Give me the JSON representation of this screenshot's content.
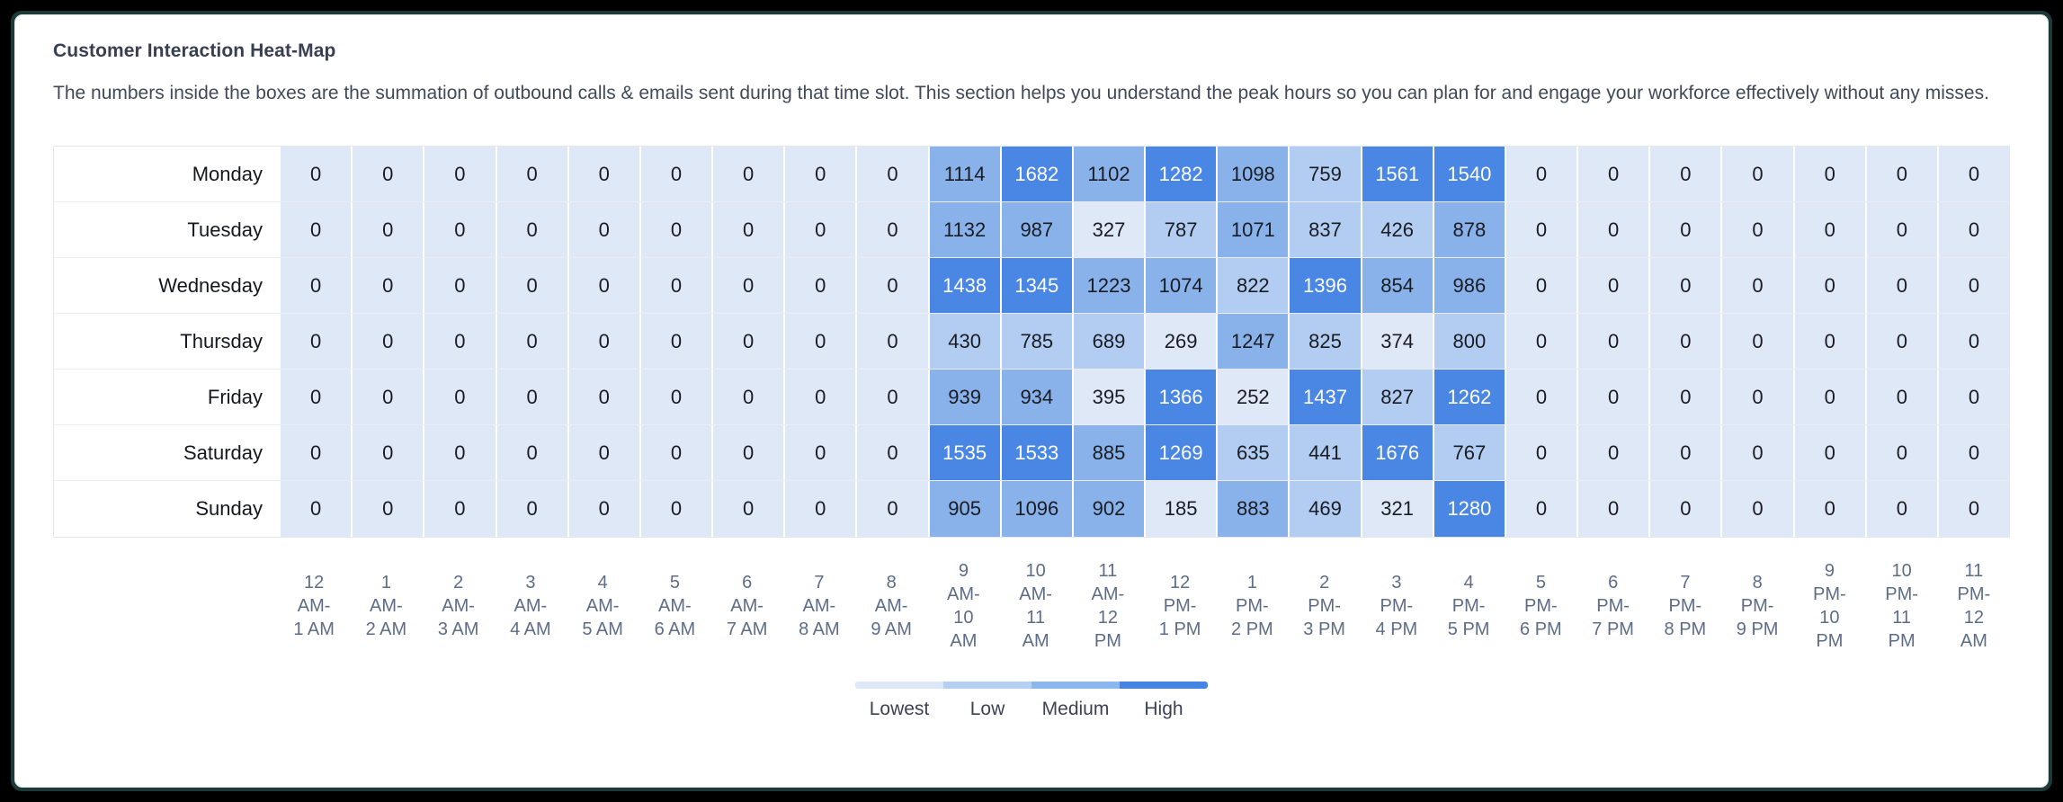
{
  "header": {
    "title": "Customer Interaction Heat-Map",
    "description": "The numbers inside the boxes are the summation of outbound calls & emails sent during that time slot. This section helps you understand the peak hours so you can plan for and engage your workforce effectively without any misses."
  },
  "chart_data": {
    "type": "heatmap",
    "title": "Customer Interaction Heat-Map",
    "xlabel": "",
    "ylabel": "",
    "legend_position": "bottom",
    "grid": false,
    "rows": [
      "Monday",
      "Tuesday",
      "Wednesday",
      "Thursday",
      "Friday",
      "Saturday",
      "Sunday"
    ],
    "columns": [
      "12\nAM-\n1 AM",
      "1\nAM-\n2 AM",
      "2\nAM-\n3 AM",
      "3\nAM-\n4 AM",
      "4\nAM-\n5 AM",
      "5\nAM-\n6 AM",
      "6\nAM-\n7 AM",
      "7\nAM-\n8 AM",
      "8\nAM-\n9 AM",
      "9\nAM-\n10\nAM",
      "10\nAM-\n11\nAM",
      "11\nAM-\n12\nPM",
      "12\nPM-\n1 PM",
      "1\nPM-\n2 PM",
      "2\nPM-\n3 PM",
      "3\nPM-\n4 PM",
      "4\nPM-\n5 PM",
      "5\nPM-\n6 PM",
      "6\nPM-\n7 PM",
      "7\nPM-\n8 PM",
      "8\nPM-\n9 PM",
      "9\nPM-\n10\nPM",
      "10\nPM-\n11\nPM",
      "11\nPM-\n12\nAM"
    ],
    "values": [
      [
        0,
        0,
        0,
        0,
        0,
        0,
        0,
        0,
        0,
        1114,
        1682,
        1102,
        1282,
        1098,
        759,
        1561,
        1540,
        0,
        0,
        0,
        0,
        0,
        0,
        0
      ],
      [
        0,
        0,
        0,
        0,
        0,
        0,
        0,
        0,
        0,
        1132,
        987,
        327,
        787,
        1071,
        837,
        426,
        878,
        0,
        0,
        0,
        0,
        0,
        0,
        0
      ],
      [
        0,
        0,
        0,
        0,
        0,
        0,
        0,
        0,
        0,
        1438,
        1345,
        1223,
        1074,
        822,
        1396,
        854,
        986,
        0,
        0,
        0,
        0,
        0,
        0,
        0
      ],
      [
        0,
        0,
        0,
        0,
        0,
        0,
        0,
        0,
        0,
        430,
        785,
        689,
        269,
        1247,
        825,
        374,
        800,
        0,
        0,
        0,
        0,
        0,
        0,
        0
      ],
      [
        0,
        0,
        0,
        0,
        0,
        0,
        0,
        0,
        0,
        939,
        934,
        395,
        1366,
        252,
        1437,
        827,
        1262,
        0,
        0,
        0,
        0,
        0,
        0,
        0
      ],
      [
        0,
        0,
        0,
        0,
        0,
        0,
        0,
        0,
        0,
        1535,
        1533,
        885,
        1269,
        635,
        441,
        1676,
        767,
        0,
        0,
        0,
        0,
        0,
        0,
        0
      ],
      [
        0,
        0,
        0,
        0,
        0,
        0,
        0,
        0,
        0,
        905,
        1096,
        902,
        185,
        883,
        469,
        321,
        1280,
        0,
        0,
        0,
        0,
        0,
        0,
        0
      ]
    ],
    "max": 1682,
    "tier_thresholds": [
      0.25,
      0.5,
      0.75
    ],
    "tier_colors": [
      "#dfe8f7",
      "#b2cdf1",
      "#8ab2ea",
      "#4a86e3"
    ],
    "high_tier_text_color": "#ffffff"
  },
  "legend": {
    "items": [
      {
        "label": "Lowest",
        "color": "#dce8f8"
      },
      {
        "label": "Low",
        "color": "#b4d0f3"
      },
      {
        "label": "Medium",
        "color": "#8cb6ee"
      },
      {
        "label": "High",
        "color": "#4584e4"
      }
    ]
  }
}
